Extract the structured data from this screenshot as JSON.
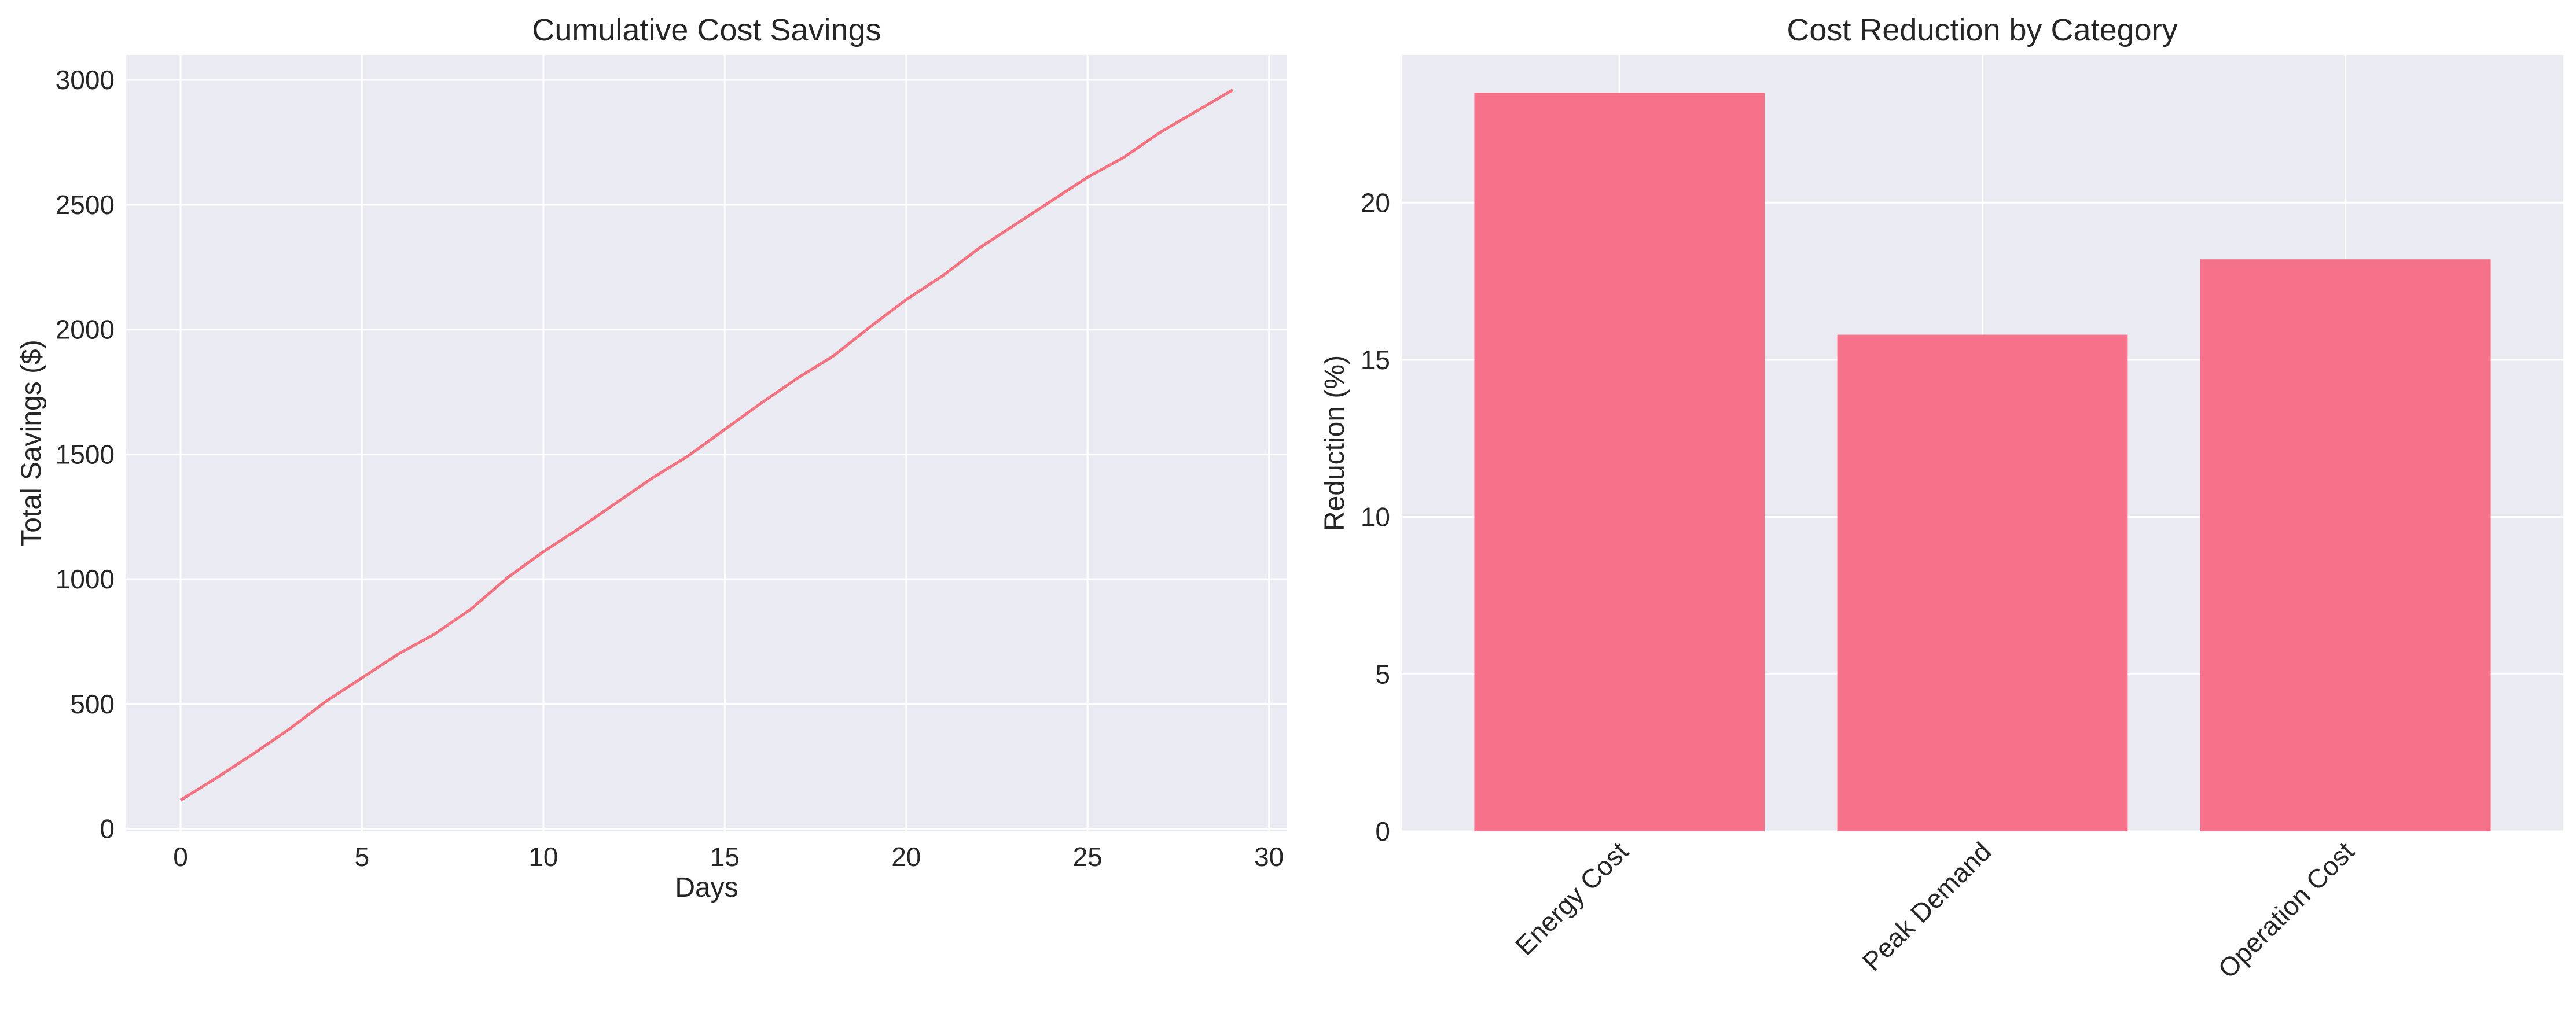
{
  "colors": {
    "plot_background": "#eaeaf2",
    "grid": "#ffffff",
    "line": "#f3727f",
    "bar": "#f5728a",
    "text": "#262626"
  },
  "chart_data": [
    {
      "type": "line",
      "title": "Cumulative Cost Savings",
      "xlabel": "Days",
      "ylabel": "Total Savings ($)",
      "xlim": [
        -1.5,
        30.5
      ],
      "ylim": [
        -10,
        3100
      ],
      "xticks": [
        0,
        5,
        10,
        15,
        20,
        25,
        30
      ],
      "yticks": [
        0,
        500,
        1000,
        1500,
        2000,
        2500,
        3000
      ],
      "grid": true,
      "series": [
        {
          "x": [
            0,
            1,
            2,
            3,
            4,
            5,
            6,
            7,
            8,
            9,
            10,
            11,
            12,
            13,
            14,
            15,
            16,
            17,
            18,
            19,
            20,
            21,
            22,
            23,
            24,
            25,
            26,
            27,
            28,
            29
          ],
          "values": [
            115,
            205,
            300,
            400,
            510,
            605,
            700,
            780,
            880,
            1005,
            1110,
            1205,
            1305,
            1405,
            1495,
            1600,
            1705,
            1805,
            1895,
            2010,
            2120,
            2215,
            2325,
            2420,
            2515,
            2610,
            2690,
            2790,
            2875,
            2960
          ]
        }
      ]
    },
    {
      "type": "bar",
      "title": "Cost Reduction by Category",
      "xlabel": "",
      "ylabel": "Reduction (%)",
      "categories": [
        "Energy Cost",
        "Peak Demand",
        "Operation Cost"
      ],
      "values": [
        23.5,
        15.8,
        18.2
      ],
      "ylim": [
        0,
        24.7
      ],
      "yticks": [
        0,
        5,
        10,
        15,
        20
      ],
      "tick_rotation": -45,
      "grid": true
    }
  ]
}
